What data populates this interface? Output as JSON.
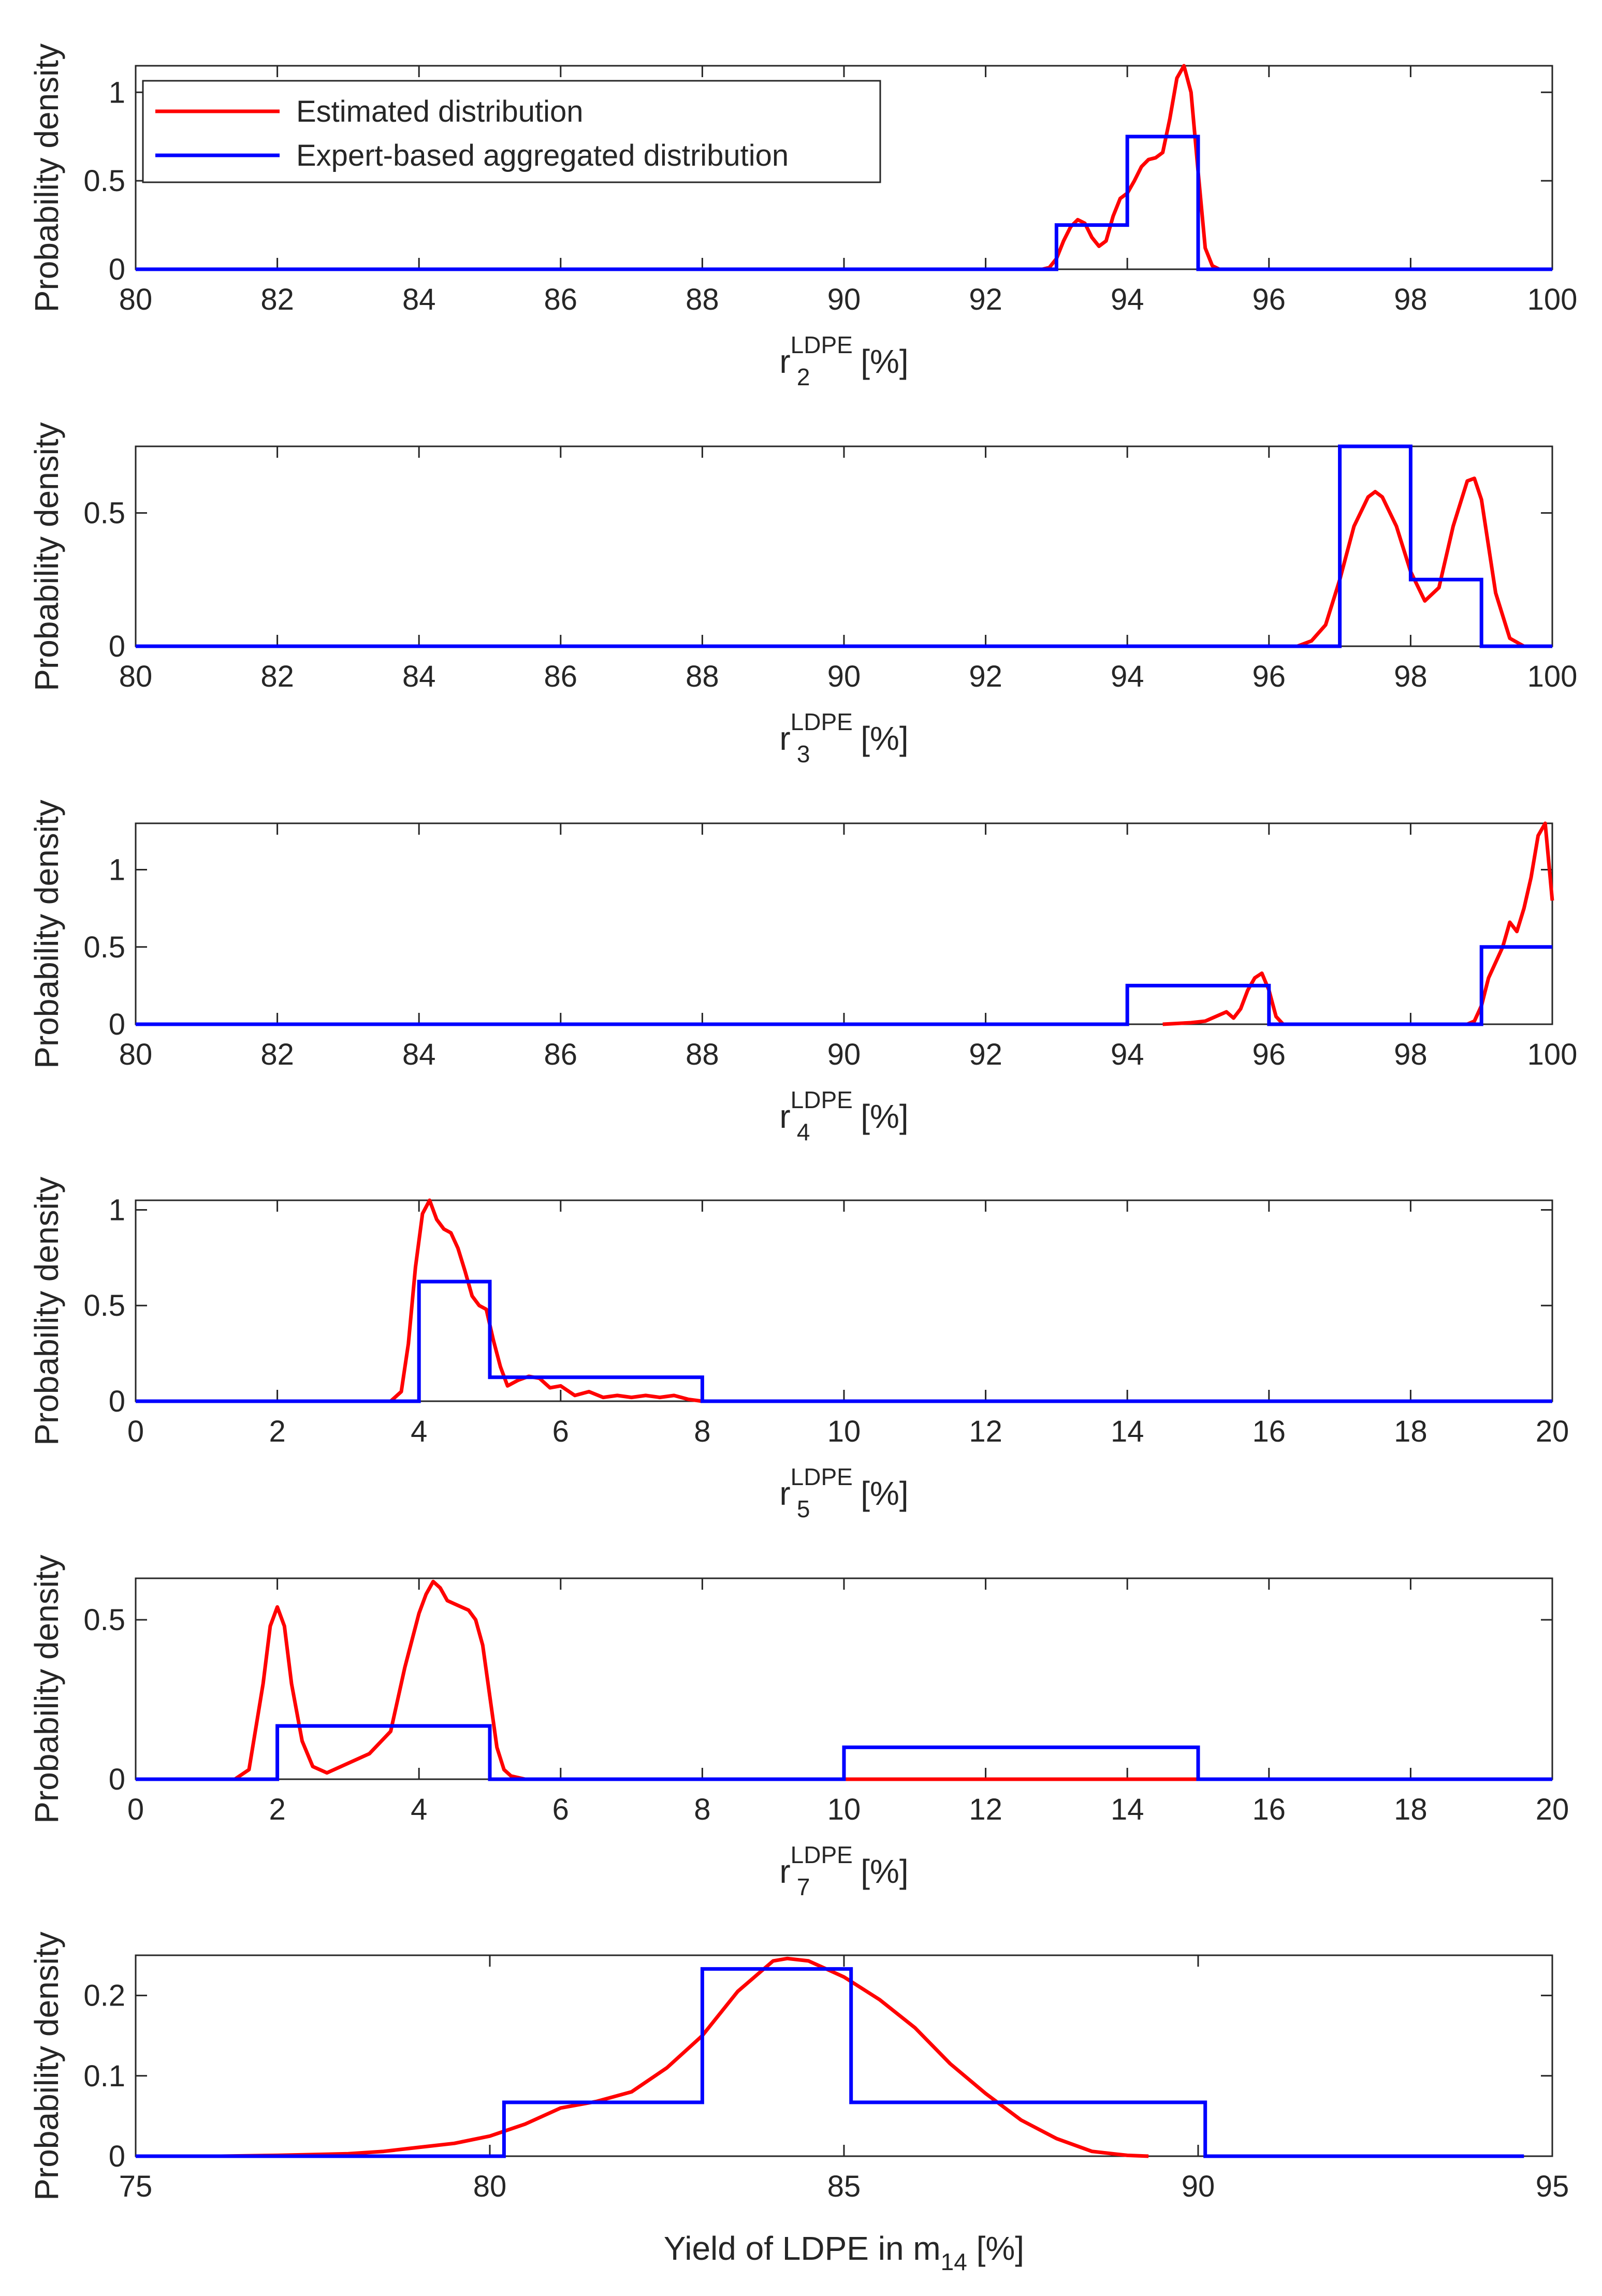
{
  "figure": {
    "legend": {
      "estimated_label": "Estimated distribution",
      "expert_label": "Expert-based aggregated distribution",
      "estimated_color": "#ff0000",
      "expert_color": "#0000ff"
    }
  },
  "chart_data": [
    {
      "type": "line",
      "ylabel": "Probability density",
      "xlabel": {
        "main": "r",
        "sub": "2",
        "sup": "LDPE",
        "suffix": " [%]"
      },
      "xlim": [
        80,
        100
      ],
      "ylim": [
        0,
        1.15
      ],
      "xticks": [
        80,
        82,
        84,
        86,
        88,
        90,
        92,
        94,
        96,
        98,
        100
      ],
      "xtick_labels": [
        "80",
        "82",
        "84",
        "86",
        "88",
        "90",
        "92",
        "94",
        "96",
        "98",
        "100"
      ],
      "yticks": [
        0,
        0.5,
        1
      ],
      "ytick_labels": [
        "0",
        "0.5",
        "1"
      ],
      "legend_location": "top-left",
      "series": [
        {
          "name": "Estimated distribution",
          "x": [
            80,
            92.8,
            92.9,
            93.0,
            93.1,
            93.2,
            93.3,
            93.4,
            93.5,
            93.6,
            93.7,
            93.8,
            93.9,
            94.0,
            94.1,
            94.2,
            94.3,
            94.4,
            94.5,
            94.6,
            94.7,
            94.8,
            94.9,
            95.0,
            95.1,
            95.2,
            95.3,
            100
          ],
          "y": [
            0,
            0,
            0.01,
            0.06,
            0.16,
            0.24,
            0.28,
            0.26,
            0.18,
            0.13,
            0.16,
            0.3,
            0.4,
            0.43,
            0.5,
            0.58,
            0.62,
            0.63,
            0.66,
            0.85,
            1.08,
            1.15,
            1.0,
            0.55,
            0.12,
            0.02,
            0,
            0
          ]
        },
        {
          "name": "Expert-based aggregated distribution",
          "step": true,
          "x": [
            80,
            93,
            93,
            94,
            94,
            95,
            95,
            100
          ],
          "y": [
            0,
            0,
            0.25,
            0.25,
            0.75,
            0.75,
            0,
            0
          ]
        }
      ]
    },
    {
      "type": "line",
      "ylabel": "Probability density",
      "xlabel": {
        "main": "r",
        "sub": "3",
        "sup": "LDPE",
        "suffix": " [%]"
      },
      "xlim": [
        80,
        100
      ],
      "ylim": [
        0,
        0.75
      ],
      "xticks": [
        80,
        82,
        84,
        86,
        88,
        90,
        92,
        94,
        96,
        98,
        100
      ],
      "xtick_labels": [
        "80",
        "82",
        "84",
        "86",
        "88",
        "90",
        "92",
        "94",
        "96",
        "98",
        "100"
      ],
      "yticks": [
        0,
        0.5
      ],
      "ytick_labels": [
        "0",
        "0.5"
      ],
      "series": [
        {
          "name": "Estimated distribution",
          "x": [
            80,
            96.4,
            96.6,
            96.8,
            97.0,
            97.2,
            97.4,
            97.5,
            97.6,
            97.8,
            98.0,
            98.2,
            98.4,
            98.6,
            98.8,
            98.9,
            99.0,
            99.2,
            99.4,
            99.6,
            100
          ],
          "y": [
            0,
            0,
            0.02,
            0.08,
            0.25,
            0.45,
            0.56,
            0.58,
            0.56,
            0.45,
            0.28,
            0.17,
            0.22,
            0.45,
            0.62,
            0.63,
            0.55,
            0.2,
            0.03,
            0,
            0
          ]
        },
        {
          "name": "Expert-based aggregated distribution",
          "step": true,
          "x": [
            80,
            97,
            97,
            98,
            98,
            99,
            99,
            100
          ],
          "y": [
            0,
            0,
            0.75,
            0.75,
            0.25,
            0.25,
            0,
            0
          ]
        }
      ]
    },
    {
      "type": "line",
      "ylabel": "Probability density",
      "xlabel": {
        "main": "r",
        "sub": "4",
        "sup": "LDPE",
        "suffix": " [%]"
      },
      "xlim": [
        80,
        100
      ],
      "ylim": [
        0,
        1.3
      ],
      "xticks": [
        80,
        82,
        84,
        86,
        88,
        90,
        92,
        94,
        96,
        98,
        100
      ],
      "xtick_labels": [
        "80",
        "82",
        "84",
        "86",
        "88",
        "90",
        "92",
        "94",
        "96",
        "98",
        "100"
      ],
      "yticks": [
        0,
        0.5,
        1
      ],
      "ytick_labels": [
        "0",
        "0.5",
        "1"
      ],
      "series": [
        {
          "name": "Estimated distribution",
          "x": [
            94.5,
            94.9,
            95.1,
            95.3,
            95.4,
            95.5,
            95.6,
            95.7,
            95.8,
            95.9,
            96.0,
            96.1,
            96.2,
            98.8,
            98.9,
            99.0,
            99.1,
            99.2,
            99.3,
            99.4,
            99.5,
            99.6,
            99.7,
            99.8,
            99.9,
            100.0
          ],
          "y": [
            0,
            0.01,
            0.02,
            0.06,
            0.08,
            0.04,
            0.1,
            0.22,
            0.3,
            0.33,
            0.22,
            0.05,
            0,
            0,
            0.02,
            0.12,
            0.3,
            0.4,
            0.5,
            0.66,
            0.6,
            0.75,
            0.95,
            1.22,
            1.3,
            0.8
          ]
        },
        {
          "name": "Expert-based aggregated distribution",
          "step": true,
          "x": [
            80,
            94,
            94,
            96,
            96,
            99,
            99,
            100
          ],
          "y": [
            0,
            0,
            0.25,
            0.25,
            0,
            0,
            0.5,
            0.5
          ]
        }
      ]
    },
    {
      "type": "line",
      "ylabel": "Probability density",
      "xlabel": {
        "main": "r",
        "sub": "5",
        "sup": "LDPE",
        "suffix": " [%]"
      },
      "xlim": [
        0,
        20
      ],
      "ylim": [
        0,
        1.05
      ],
      "xticks": [
        0,
        2,
        4,
        6,
        8,
        10,
        12,
        14,
        16,
        18,
        20
      ],
      "xtick_labels": [
        "0",
        "2",
        "4",
        "6",
        "8",
        "10",
        "12",
        "14",
        "16",
        "18",
        "20"
      ],
      "yticks": [
        0,
        0.5,
        1
      ],
      "ytick_labels": [
        "0",
        "0.5",
        "1"
      ],
      "series": [
        {
          "name": "Estimated distribution",
          "x": [
            0,
            3.6,
            3.75,
            3.85,
            3.95,
            4.05,
            4.15,
            4.25,
            4.35,
            4.45,
            4.55,
            4.65,
            4.75,
            4.85,
            4.95,
            5.05,
            5.15,
            5.25,
            5.4,
            5.55,
            5.7,
            5.85,
            6.0,
            6.2,
            6.4,
            6.6,
            6.8,
            7.0,
            7.2,
            7.4,
            7.6,
            7.8,
            8.0,
            20
          ],
          "y": [
            0,
            0,
            0.05,
            0.3,
            0.7,
            0.98,
            1.05,
            0.95,
            0.9,
            0.88,
            0.8,
            0.68,
            0.55,
            0.5,
            0.48,
            0.32,
            0.18,
            0.08,
            0.11,
            0.13,
            0.12,
            0.07,
            0.08,
            0.03,
            0.05,
            0.02,
            0.03,
            0.02,
            0.03,
            0.02,
            0.03,
            0.01,
            0,
            0
          ]
        },
        {
          "name": "Expert-based aggregated distribution",
          "step": true,
          "x": [
            0,
            4,
            4,
            5,
            5,
            8,
            8,
            20
          ],
          "y": [
            0,
            0,
            0.625,
            0.625,
            0.125,
            0.125,
            0,
            0
          ]
        }
      ]
    },
    {
      "type": "line",
      "ylabel": "Probability density",
      "xlabel": {
        "main": "r",
        "sub": "7",
        "sup": "LDPE",
        "suffix": " [%]"
      },
      "xlim": [
        0,
        20
      ],
      "ylim": [
        0,
        0.63
      ],
      "xticks": [
        0,
        2,
        4,
        6,
        8,
        10,
        12,
        14,
        16,
        18,
        20
      ],
      "xtick_labels": [
        "0",
        "2",
        "4",
        "6",
        "8",
        "10",
        "12",
        "14",
        "16",
        "18",
        "20"
      ],
      "yticks": [
        0,
        0.5
      ],
      "ytick_labels": [
        "0",
        "0.5"
      ],
      "series": [
        {
          "name": "Estimated distribution",
          "x": [
            0,
            1.4,
            1.6,
            1.8,
            1.9,
            2.0,
            2.1,
            2.2,
            2.35,
            2.5,
            2.7,
            3.0,
            3.3,
            3.6,
            3.8,
            4.0,
            4.1,
            4.2,
            4.3,
            4.4,
            4.5,
            4.6,
            4.7,
            4.8,
            4.9,
            5.0,
            5.1,
            5.2,
            5.3,
            5.5,
            20
          ],
          "y": [
            0,
            0,
            0.03,
            0.3,
            0.48,
            0.54,
            0.48,
            0.3,
            0.12,
            0.04,
            0.02,
            0.05,
            0.08,
            0.15,
            0.35,
            0.52,
            0.58,
            0.62,
            0.6,
            0.56,
            0.55,
            0.54,
            0.53,
            0.5,
            0.42,
            0.26,
            0.1,
            0.03,
            0.01,
            0,
            0
          ]
        },
        {
          "name": "Expert-based aggregated distribution",
          "step": true,
          "x": [
            0,
            2,
            2,
            5,
            5,
            10,
            10,
            15,
            15,
            20
          ],
          "y": [
            0,
            0,
            0.167,
            0.167,
            0,
            0,
            0.1,
            0.1,
            0,
            0
          ]
        }
      ]
    },
    {
      "type": "line",
      "ylabel": "Probability density",
      "xlabel": {
        "main": "Yield of LDPE in m",
        "sub": "14",
        "sup": "",
        "suffix": " [%]"
      },
      "xlim": [
        75,
        95
      ],
      "ylim": [
        0,
        0.25
      ],
      "xticks": [
        75,
        80,
        85,
        90,
        95
      ],
      "xtick_labels": [
        "75",
        "80",
        "85",
        "90",
        "95"
      ],
      "yticks": [
        0,
        0.1,
        0.2
      ],
      "ytick_labels": [
        "0",
        "0.1",
        "0.2"
      ],
      "series": [
        {
          "name": "Estimated distribution",
          "x": [
            76.2,
            77,
            78,
            78.5,
            79,
            79.5,
            80,
            80.5,
            81,
            81.5,
            82,
            82.5,
            83,
            83.5,
            84,
            84.2,
            84.5,
            85,
            85.5,
            86,
            86.5,
            87,
            87.5,
            88,
            88.5,
            89,
            89.3
          ],
          "y": [
            0,
            0.001,
            0.003,
            0.006,
            0.011,
            0.016,
            0.025,
            0.04,
            0.06,
            0.068,
            0.08,
            0.11,
            0.15,
            0.205,
            0.243,
            0.246,
            0.243,
            0.223,
            0.195,
            0.16,
            0.115,
            0.078,
            0.045,
            0.022,
            0.006,
            0.001,
            0
          ]
        },
        {
          "name": "Expert-based aggregated distribution",
          "step": true,
          "x": [
            75,
            80.2,
            80.2,
            83.0,
            83.0,
            85.1,
            85.1,
            90.1,
            90.1,
            94.6
          ],
          "y": [
            0,
            0,
            0.067,
            0.067,
            0.233,
            0.233,
            0.067,
            0.067,
            0,
            0
          ]
        }
      ]
    }
  ]
}
